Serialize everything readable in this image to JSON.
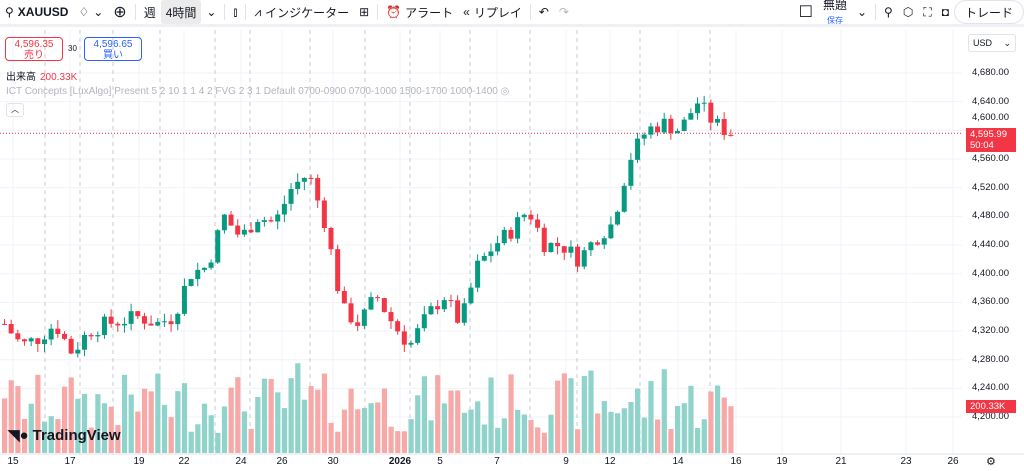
{
  "toolbar": {
    "symbol": "XAUUSD",
    "interval_week": "週",
    "interval": "4時間",
    "indicators": "インジケーター",
    "alert": "アラート",
    "replay": "リプレイ",
    "layout_name": "無題",
    "save": "保存",
    "trade": "トレード"
  },
  "order": {
    "sell_price": "4,596.35",
    "sell_label": "売り",
    "spread": "30",
    "buy_price": "4,596.65",
    "buy_label": "買い"
  },
  "volume": {
    "label": "出来高",
    "value": "200.33K"
  },
  "indicator_legend": "ICT Concepts [LuxAlgo] Present 5 2 10 1 1 4 2 FVG 2 3 1 Default 0700-0900 0700-1000 1500-1700 1000-1400",
  "currency": "USD",
  "last_price": "4,595.99",
  "countdown": "50:04",
  "volume_tag": "200.33K",
  "colors": {
    "up": "#089981",
    "down": "#f23645",
    "vol_up": "#8fd3cb",
    "vol_down": "#f7a9a7"
  },
  "chart_data": {
    "type": "candlestick",
    "y_ticks": [
      "4,680.00",
      "4,640.00",
      "4,600.00",
      "4,560.00",
      "4,520.00",
      "4,480.00",
      "4,440.00",
      "4,400.00",
      "4,360.00",
      "4,320.00",
      "4,280.00",
      "4,240.00",
      "4,200.00"
    ],
    "y_values": [
      4680,
      4640,
      4600,
      4560,
      4520,
      4480,
      4440,
      4400,
      4360,
      4320,
      4280,
      4240,
      4200
    ],
    "x_ticks": [
      "15",
      "17",
      "19",
      "22",
      "24",
      "26",
      "30",
      "2026",
      "5",
      "7",
      "9",
      "12",
      "14",
      "16",
      "19",
      "21",
      "23",
      "26"
    ],
    "close_path": [
      4330,
      4300,
      4310,
      4330,
      4290,
      4320,
      4330,
      4335,
      4340,
      4330,
      4340,
      4400,
      4410,
      4480,
      4450,
      4480,
      4470,
      4520,
      4540,
      4470,
      4350,
      4330,
      4370,
      4330,
      4300,
      4340,
      4370,
      4330,
      4410,
      4440,
      4460,
      4490,
      4440,
      4440,
      4420,
      4450,
      4470,
      4560,
      4600,
      4610,
      4600,
      4640,
      4610,
      4596
    ]
  }
}
